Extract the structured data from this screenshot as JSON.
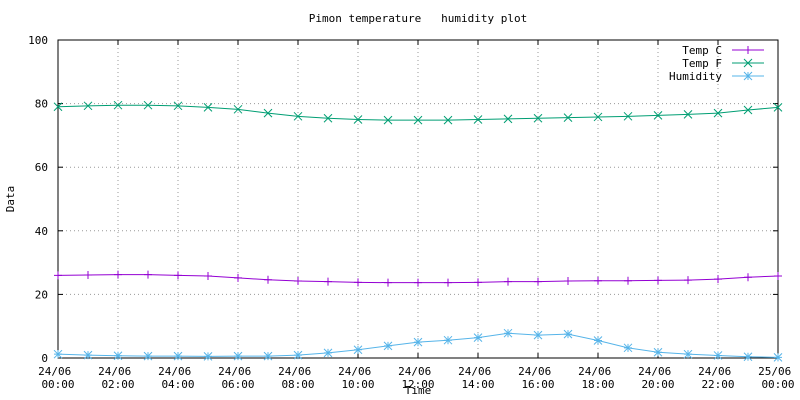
{
  "chart_data": {
    "type": "line",
    "title": "Pimon temperature   humidity plot",
    "x_label": "Time",
    "y_label": "Data",
    "x": [
      "24/06 00:00",
      "24/06 01:00",
      "24/06 02:00",
      "24/06 03:00",
      "24/06 04:00",
      "24/06 05:00",
      "24/06 06:00",
      "24/06 07:00",
      "24/06 08:00",
      "24/06 09:00",
      "24/06 10:00",
      "24/06 11:00",
      "24/06 12:00",
      "24/06 13:00",
      "24/06 14:00",
      "24/06 15:00",
      "24/06 16:00",
      "24/06 17:00",
      "24/06 18:00",
      "24/06 19:00",
      "24/06 20:00",
      "24/06 21:00",
      "24/06 22:00",
      "24/06 23:00",
      "25/06 00:00"
    ],
    "series": [
      {
        "name": "Temp C",
        "color": "#9400d3",
        "marker": "plus",
        "values": [
          26,
          26.1,
          26.2,
          26.2,
          26,
          25.8,
          25.2,
          24.6,
          24.2,
          24,
          23.8,
          23.7,
          23.7,
          23.7,
          23.8,
          24,
          24,
          24.2,
          24.3,
          24.3,
          24.4,
          24.5,
          24.8,
          25.4,
          25.8
        ]
      },
      {
        "name": "Temp F",
        "color": "#009e73",
        "marker": "cross",
        "values": [
          79,
          79.3,
          79.5,
          79.5,
          79.3,
          78.8,
          78.2,
          77,
          76,
          75.4,
          75,
          74.8,
          74.8,
          74.8,
          75,
          75.2,
          75.4,
          75.6,
          75.8,
          76,
          76.3,
          76.6,
          77,
          78,
          78.8
        ]
      },
      {
        "name": "Humidity",
        "color": "#56b4e9",
        "marker": "star",
        "values": [
          1.2,
          0.9,
          0.7,
          0.6,
          0.6,
          0.5,
          0.6,
          0.6,
          0.9,
          1.6,
          2.6,
          3.8,
          5,
          5.6,
          6.4,
          7.8,
          7.2,
          7.5,
          5.5,
          3.2,
          1.8,
          1.2,
          0.8,
          0.4,
          0.2
        ]
      }
    ],
    "xlim": [
      "24/06 00:00",
      "25/06 00:00"
    ],
    "xticks": [
      "24/06 00:00",
      "24/06 02:00",
      "24/06 04:00",
      "24/06 06:00",
      "24/06 08:00",
      "24/06 10:00",
      "24/06 12:00",
      "24/06 14:00",
      "24/06 16:00",
      "24/06 18:00",
      "24/06 20:00",
      "24/06 22:00",
      "25/06 00:00"
    ],
    "ylim": [
      0,
      100
    ],
    "yticks": [
      0,
      20,
      40,
      60,
      80,
      100
    ],
    "grid": true,
    "legend": "top-right"
  }
}
